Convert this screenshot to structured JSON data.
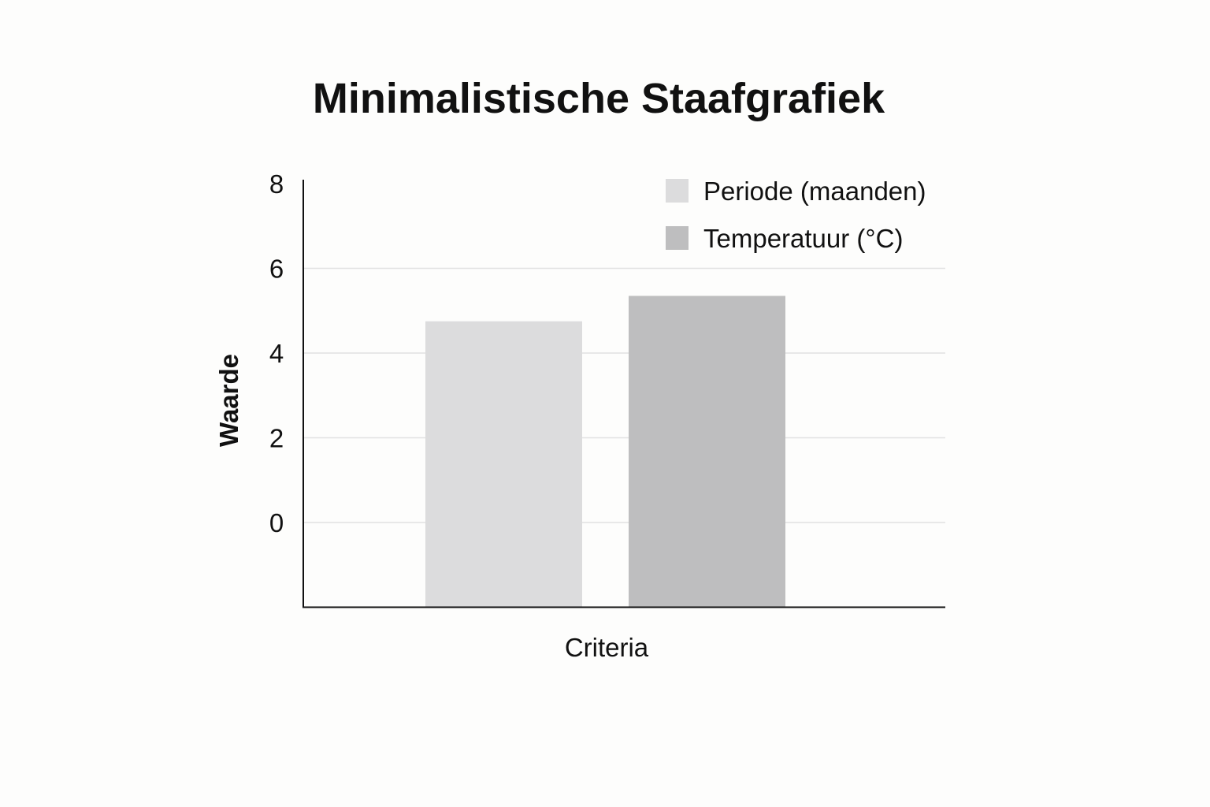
{
  "chart_data": {
    "type": "bar",
    "title": "Minimalistische Staafgrafiek",
    "xlabel": "Criteria",
    "ylabel": "Waarde",
    "categories": [
      ""
    ],
    "series": [
      {
        "name": "Periode (maanden)",
        "values": [
          4.75
        ],
        "color": "#dcdcdd"
      },
      {
        "name": "Temperatuur (°C)",
        "values": [
          5.35
        ],
        "color": "#bebebf"
      }
    ],
    "ylim": [
      -2,
      8
    ],
    "yticks": [
      0,
      2,
      4,
      6,
      8
    ],
    "grid": true,
    "legend": "top-right",
    "colors": {
      "text": "#111111",
      "axis": "#111111",
      "grid": "#e2e2e2",
      "background": "#fdfdfc"
    }
  }
}
